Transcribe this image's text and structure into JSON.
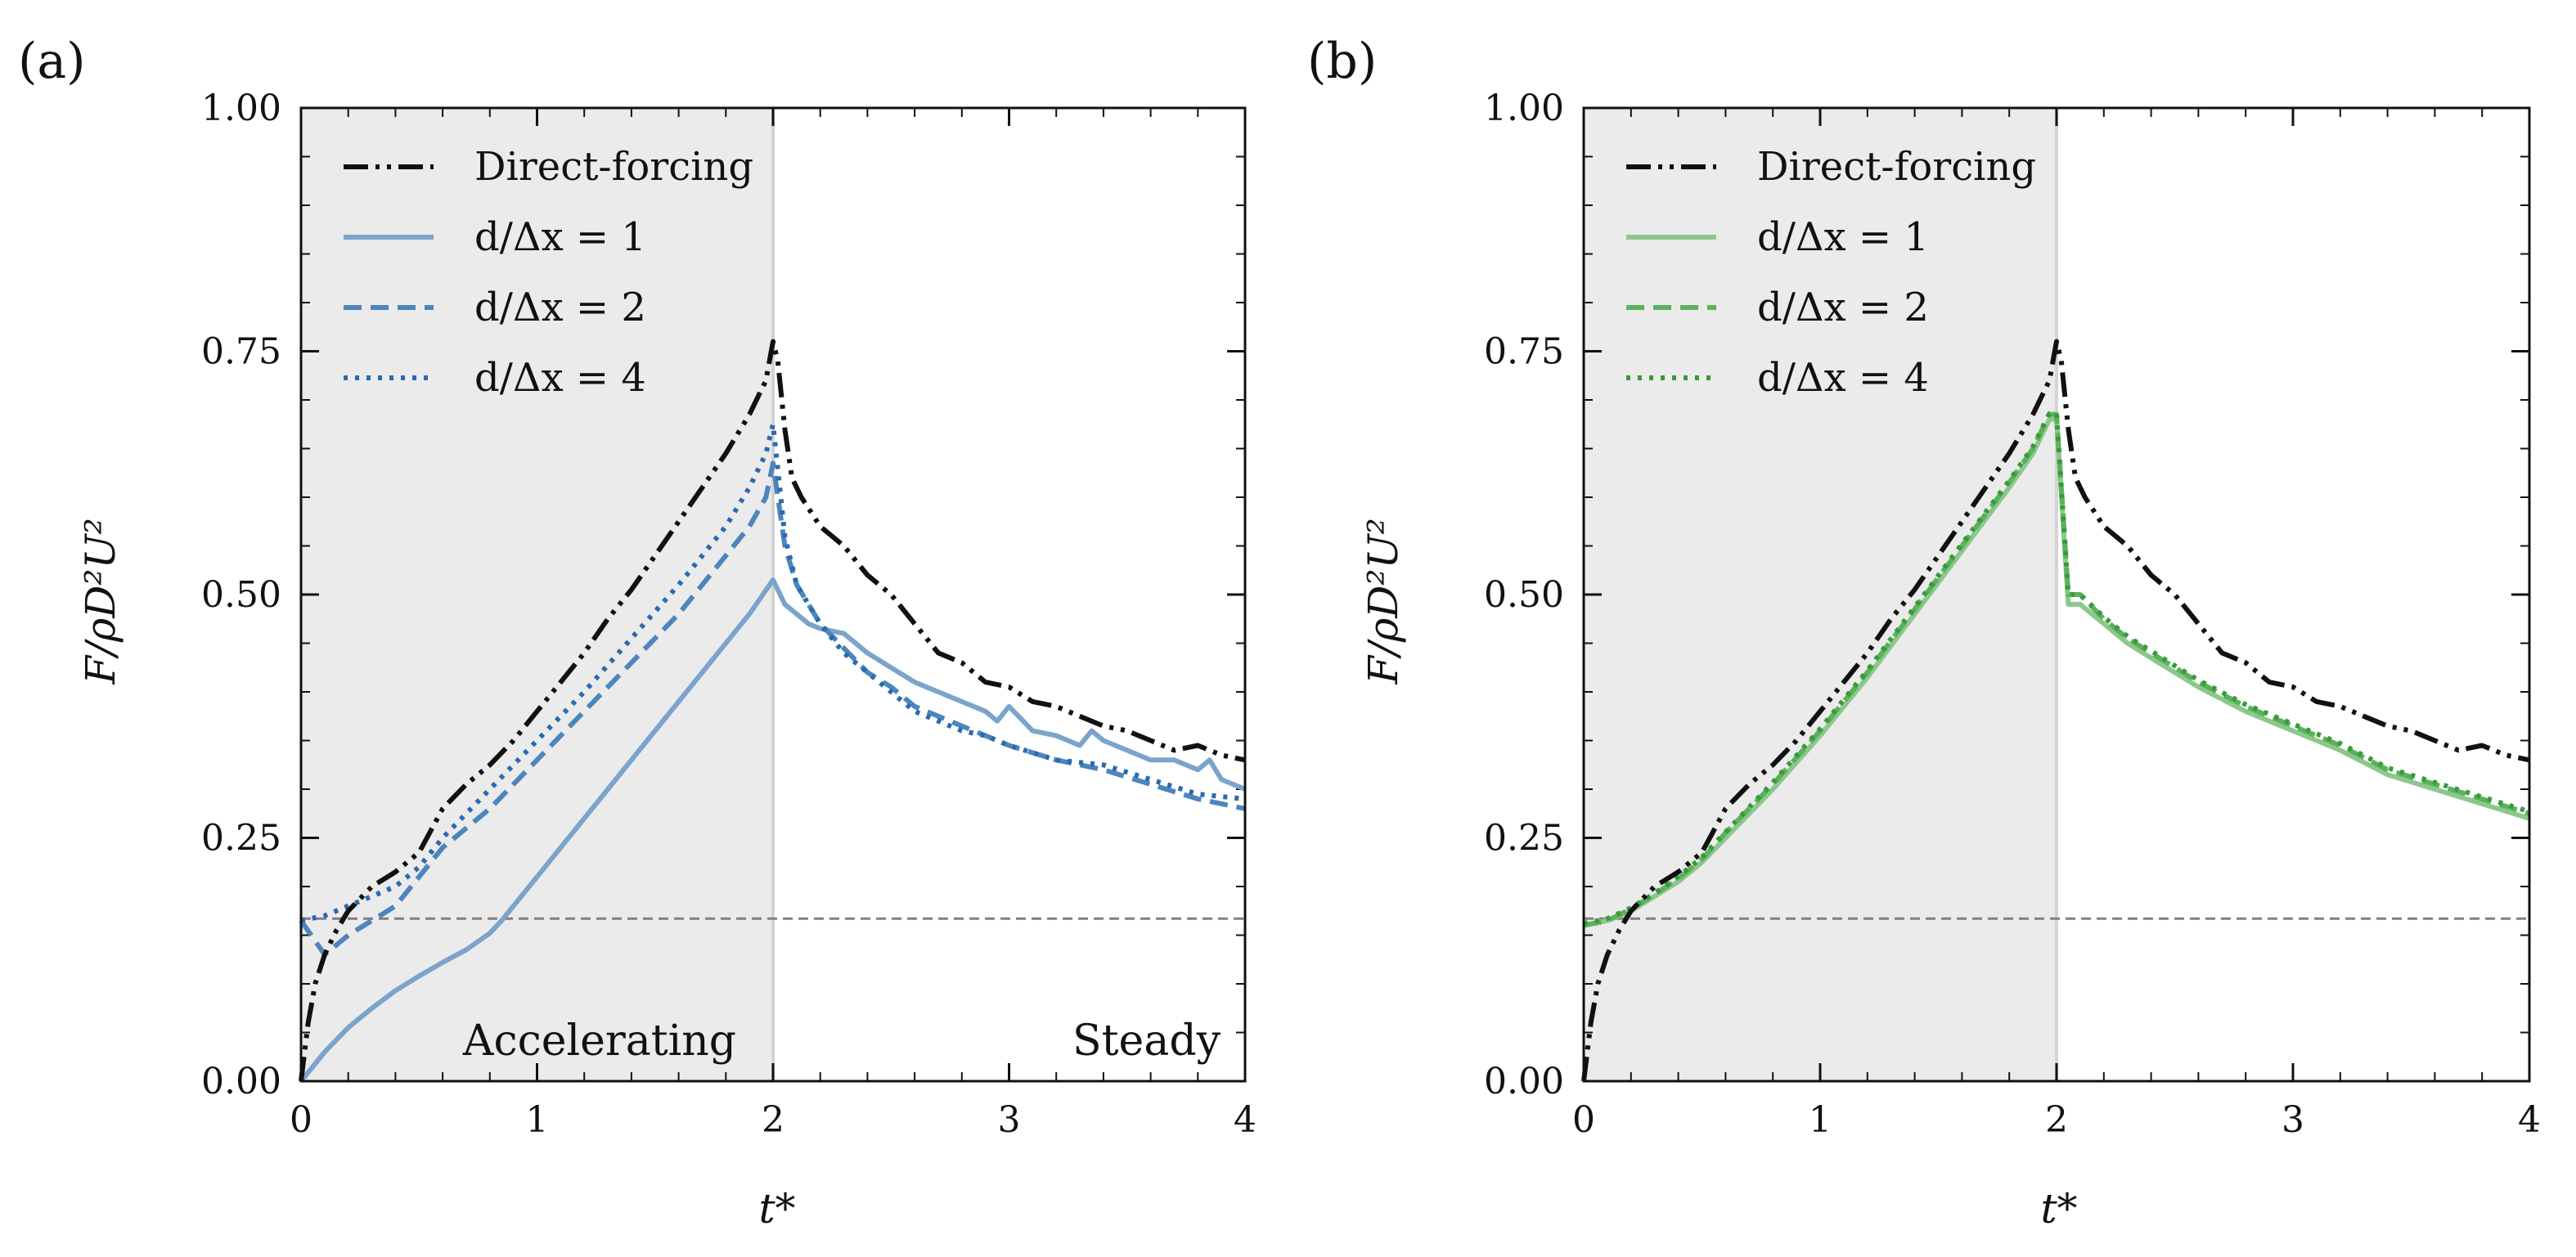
{
  "chart_data": [
    {
      "type": "line",
      "panel_label": "(a)",
      "xlabel": "t*",
      "ylabel": "F/ρD²U²",
      "xlim": [
        0,
        4
      ],
      "ylim": [
        0,
        1
      ],
      "xticks": [
        "0",
        "1",
        "2",
        "3",
        "4"
      ],
      "yticks": [
        "0.00",
        "0.25",
        "0.50",
        "0.75",
        "1.00"
      ],
      "shaded_region": {
        "x0": 0,
        "x1": 2,
        "color": "#ebebeb"
      },
      "region_labels": [
        "Accelerating",
        "Steady"
      ],
      "reference_line": {
        "y": 0.167,
        "color": "#808080",
        "style": "dashed"
      },
      "series": [
        {
          "name": "Direct-forcing",
          "color": "#111111",
          "style": "dashdotdot",
          "x": [
            0,
            0.03,
            0.06,
            0.1,
            0.15,
            0.2,
            0.3,
            0.4,
            0.5,
            0.6,
            0.7,
            0.8,
            0.9,
            1.0,
            1.1,
            1.2,
            1.3,
            1.4,
            1.5,
            1.6,
            1.7,
            1.8,
            1.9,
            1.97,
            2.0,
            2.02,
            2.05,
            2.08,
            2.12,
            2.2,
            2.3,
            2.4,
            2.5,
            2.6,
            2.7,
            2.8,
            2.9,
            3.0,
            3.1,
            3.2,
            3.3,
            3.4,
            3.5,
            3.6,
            3.7,
            3.8,
            3.9,
            4.0
          ],
          "y": [
            0.0,
            0.06,
            0.1,
            0.13,
            0.155,
            0.175,
            0.2,
            0.215,
            0.235,
            0.28,
            0.305,
            0.325,
            0.35,
            0.38,
            0.41,
            0.44,
            0.475,
            0.505,
            0.54,
            0.575,
            0.61,
            0.645,
            0.685,
            0.72,
            0.76,
            0.74,
            0.67,
            0.62,
            0.6,
            0.57,
            0.55,
            0.52,
            0.5,
            0.47,
            0.44,
            0.43,
            0.41,
            0.405,
            0.39,
            0.385,
            0.375,
            0.365,
            0.36,
            0.35,
            0.34,
            0.345,
            0.335,
            0.33
          ]
        },
        {
          "name": "d/Δx = 1",
          "color": "#7ba4cc",
          "style": "solid",
          "x": [
            0,
            0.1,
            0.2,
            0.3,
            0.4,
            0.5,
            0.6,
            0.7,
            0.8,
            0.85,
            1.0,
            1.2,
            1.4,
            1.6,
            1.8,
            1.9,
            2.0,
            2.05,
            2.1,
            2.15,
            2.2,
            2.3,
            2.4,
            2.5,
            2.6,
            2.7,
            2.8,
            2.9,
            2.95,
            3.0,
            3.1,
            3.2,
            3.3,
            3.35,
            3.4,
            3.5,
            3.6,
            3.7,
            3.8,
            3.85,
            3.9,
            4.0
          ],
          "y": [
            0.0,
            0.03,
            0.055,
            0.075,
            0.093,
            0.108,
            0.122,
            0.135,
            0.152,
            0.165,
            0.21,
            0.27,
            0.33,
            0.39,
            0.45,
            0.48,
            0.515,
            0.49,
            0.48,
            0.47,
            0.465,
            0.46,
            0.44,
            0.425,
            0.41,
            0.4,
            0.39,
            0.38,
            0.37,
            0.385,
            0.36,
            0.355,
            0.345,
            0.36,
            0.35,
            0.34,
            0.33,
            0.33,
            0.32,
            0.33,
            0.31,
            0.3
          ]
        },
        {
          "name": "d/Δx = 2",
          "color": "#4d85bd",
          "style": "dashed",
          "x": [
            0,
            0.1,
            0.2,
            0.3,
            0.4,
            0.5,
            0.6,
            0.8,
            1.0,
            1.2,
            1.4,
            1.6,
            1.8,
            1.9,
            1.97,
            2.0,
            2.05,
            2.1,
            2.2,
            2.3,
            2.4,
            2.5,
            2.6,
            2.7,
            2.8,
            2.9,
            3.0,
            3.2,
            3.4,
            3.6,
            3.8,
            4.0
          ],
          "y": [
            0.165,
            0.13,
            0.15,
            0.165,
            0.18,
            0.21,
            0.24,
            0.28,
            0.33,
            0.38,
            0.43,
            0.48,
            0.54,
            0.57,
            0.6,
            0.635,
            0.55,
            0.51,
            0.47,
            0.445,
            0.42,
            0.405,
            0.385,
            0.375,
            0.365,
            0.355,
            0.345,
            0.33,
            0.32,
            0.305,
            0.29,
            0.28
          ]
        },
        {
          "name": "d/Δx = 4",
          "color": "#2a6aaf",
          "style": "dotted",
          "x": [
            0,
            0.1,
            0.2,
            0.3,
            0.4,
            0.5,
            0.6,
            0.8,
            1.0,
            1.2,
            1.4,
            1.6,
            1.8,
            1.9,
            1.97,
            2.0,
            2.05,
            2.1,
            2.2,
            2.3,
            2.4,
            2.5,
            2.6,
            2.7,
            2.8,
            2.9,
            3.0,
            3.2,
            3.4,
            3.6,
            3.8,
            4.0
          ],
          "y": [
            0.165,
            0.17,
            0.18,
            0.19,
            0.2,
            0.22,
            0.25,
            0.3,
            0.35,
            0.4,
            0.455,
            0.51,
            0.57,
            0.61,
            0.645,
            0.675,
            0.56,
            0.51,
            0.47,
            0.44,
            0.42,
            0.4,
            0.38,
            0.37,
            0.36,
            0.355,
            0.345,
            0.33,
            0.325,
            0.31,
            0.295,
            0.29
          ]
        }
      ]
    },
    {
      "type": "line",
      "panel_label": "(b)",
      "xlabel": "t*",
      "ylabel": "F/ρD²U²",
      "xlim": [
        0,
        4
      ],
      "ylim": [
        0,
        1
      ],
      "xticks": [
        "0",
        "1",
        "2",
        "3",
        "4"
      ],
      "yticks": [
        "0.00",
        "0.25",
        "0.50",
        "0.75",
        "1.00"
      ],
      "shaded_region": {
        "x0": 0,
        "x1": 2,
        "color": "#ebebeb"
      },
      "reference_line": {
        "y": 0.167,
        "color": "#808080",
        "style": "dashed"
      },
      "series": [
        {
          "name": "Direct-forcing",
          "color": "#111111",
          "style": "dashdotdot",
          "x": [
            0,
            0.03,
            0.06,
            0.1,
            0.15,
            0.2,
            0.3,
            0.4,
            0.5,
            0.6,
            0.7,
            0.8,
            0.9,
            1.0,
            1.1,
            1.2,
            1.3,
            1.4,
            1.5,
            1.6,
            1.7,
            1.8,
            1.9,
            1.97,
            2.0,
            2.02,
            2.05,
            2.08,
            2.12,
            2.2,
            2.3,
            2.4,
            2.5,
            2.6,
            2.7,
            2.8,
            2.9,
            3.0,
            3.1,
            3.2,
            3.3,
            3.4,
            3.5,
            3.6,
            3.7,
            3.8,
            3.9,
            4.0
          ],
          "y": [
            0.0,
            0.06,
            0.1,
            0.13,
            0.155,
            0.175,
            0.2,
            0.215,
            0.235,
            0.28,
            0.305,
            0.325,
            0.35,
            0.38,
            0.41,
            0.44,
            0.475,
            0.505,
            0.54,
            0.575,
            0.61,
            0.645,
            0.685,
            0.72,
            0.76,
            0.74,
            0.67,
            0.62,
            0.6,
            0.57,
            0.55,
            0.52,
            0.5,
            0.47,
            0.44,
            0.43,
            0.41,
            0.405,
            0.39,
            0.385,
            0.375,
            0.365,
            0.36,
            0.35,
            0.34,
            0.345,
            0.335,
            0.33
          ]
        },
        {
          "name": "d/Δx = 1",
          "color": "#8cc88c",
          "style": "solid",
          "x": [
            0,
            0.1,
            0.2,
            0.3,
            0.4,
            0.5,
            0.6,
            0.8,
            1.0,
            1.2,
            1.4,
            1.6,
            1.8,
            1.9,
            1.97,
            2.0,
            2.05,
            2.1,
            2.2,
            2.3,
            2.4,
            2.5,
            2.6,
            2.8,
            3.0,
            3.2,
            3.4,
            3.6,
            3.8,
            4.0
          ],
          "y": [
            0.16,
            0.165,
            0.175,
            0.19,
            0.205,
            0.225,
            0.25,
            0.3,
            0.355,
            0.415,
            0.48,
            0.545,
            0.61,
            0.645,
            0.68,
            0.68,
            0.49,
            0.49,
            0.47,
            0.45,
            0.435,
            0.42,
            0.405,
            0.38,
            0.36,
            0.34,
            0.315,
            0.3,
            0.285,
            0.27
          ]
        },
        {
          "name": "d/Δx = 2",
          "color": "#5cb25c",
          "style": "dashed",
          "x": [
            0,
            0.1,
            0.2,
            0.3,
            0.4,
            0.5,
            0.6,
            0.8,
            1.0,
            1.2,
            1.4,
            1.6,
            1.8,
            1.9,
            1.97,
            2.0,
            2.05,
            2.1,
            2.2,
            2.3,
            2.4,
            2.5,
            2.6,
            2.8,
            3.0,
            3.2,
            3.4,
            3.6,
            3.8,
            4.0
          ],
          "y": [
            0.16,
            0.165,
            0.177,
            0.192,
            0.208,
            0.228,
            0.255,
            0.305,
            0.36,
            0.42,
            0.485,
            0.55,
            0.615,
            0.65,
            0.685,
            0.685,
            0.5,
            0.5,
            0.475,
            0.455,
            0.44,
            0.425,
            0.41,
            0.385,
            0.365,
            0.345,
            0.32,
            0.305,
            0.29,
            0.275
          ]
        },
        {
          "name": "d/Δx = 4",
          "color": "#3a9a3a",
          "style": "dotted",
          "x": [
            0,
            0.1,
            0.2,
            0.3,
            0.4,
            0.5,
            0.6,
            0.8,
            1.0,
            1.2,
            1.4,
            1.6,
            1.8,
            1.9,
            1.97,
            2.0,
            2.05,
            2.1,
            2.2,
            2.3,
            2.4,
            2.5,
            2.6,
            2.8,
            3.0,
            3.2,
            3.4,
            3.6,
            3.8,
            4.0
          ],
          "y": [
            0.162,
            0.167,
            0.178,
            0.193,
            0.21,
            0.23,
            0.256,
            0.307,
            0.362,
            0.422,
            0.487,
            0.552,
            0.617,
            0.652,
            0.686,
            0.686,
            0.5,
            0.5,
            0.477,
            0.457,
            0.442,
            0.427,
            0.412,
            0.387,
            0.367,
            0.347,
            0.322,
            0.307,
            0.292,
            0.277
          ]
        }
      ]
    }
  ]
}
